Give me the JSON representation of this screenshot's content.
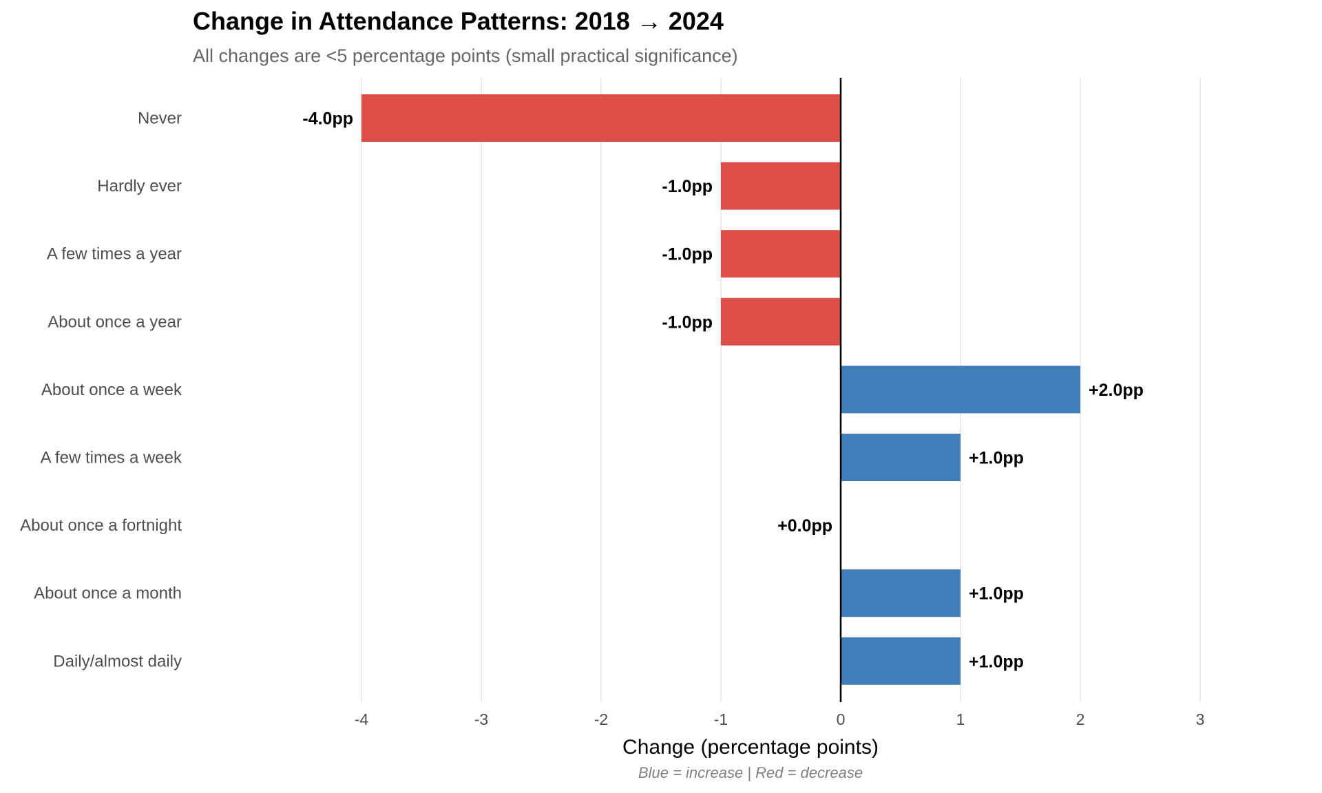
{
  "chart_data": {
    "type": "bar",
    "orientation": "horizontal",
    "title": "Change in Attendance Patterns: 2018 → 2024",
    "subtitle": "All changes are <5 percentage points (small practical significance)",
    "xlabel": "Change (percentage points)",
    "ylabel": "",
    "caption": "Blue = increase | Red = decrease",
    "categories": [
      "Never",
      "Hardly ever",
      "A few times a year",
      "About once a year",
      "About once a week",
      "A few times a week",
      "About once a fortnight",
      "About once a month",
      "Daily/almost daily"
    ],
    "values": [
      -4.0,
      -1.0,
      -1.0,
      -1.0,
      2.0,
      1.0,
      0.0,
      1.0,
      1.0
    ],
    "data_labels": [
      "-4.0pp",
      "-1.0pp",
      "-1.0pp",
      "-1.0pp",
      "+2.0pp",
      "+1.0pp",
      "+0.0pp",
      "+1.0pp",
      "+1.0pp"
    ],
    "xlim": [
      -4.5,
      3.5
    ],
    "xticks": [
      -4,
      -3,
      -2,
      -1,
      0,
      1,
      2,
      3
    ],
    "xtick_labels": [
      "-4",
      "-3",
      "-2",
      "-1",
      "0",
      "1",
      "2",
      "3"
    ],
    "grid": "vertical-major",
    "reference_line": 0,
    "legend": "none",
    "colors": {
      "increase": "#427db7",
      "decrease": "#de4f48",
      "reference_line": "#000000",
      "grid": "#ebebeb"
    }
  }
}
